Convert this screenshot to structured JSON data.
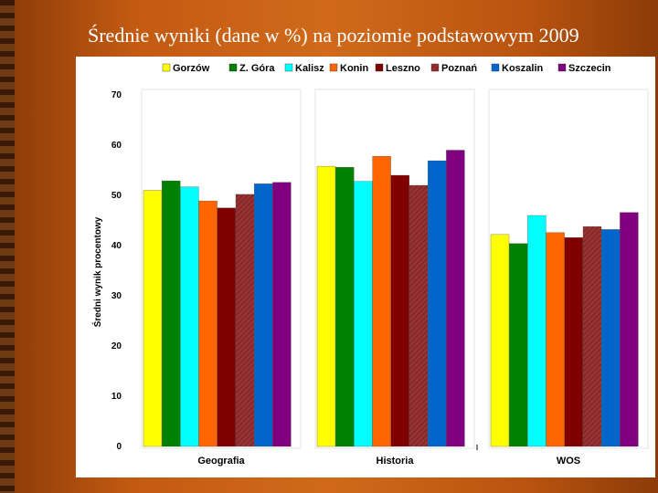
{
  "slide": {
    "title": "Średnie wyniki (dane w %) na poziomie podstawowym 2009"
  },
  "chart_data": {
    "type": "bar",
    "title": "Średnie wyniki (dane w %) na poziomie podstawowym 2009",
    "xlabel": "",
    "ylabel": "Średni wynik procentowy",
    "ylim": [
      0,
      70
    ],
    "yticks": [
      0,
      10,
      20,
      30,
      40,
      50,
      60,
      70
    ],
    "grid": false,
    "legend_position": "top",
    "categories": [
      "Geografia",
      "Historia",
      "WOS"
    ],
    "series": [
      {
        "name": "Gorzów",
        "color": "#ffff00",
        "values": [
          51.0,
          55.8,
          42.2
        ]
      },
      {
        "name": "Z. Góra",
        "color": "#008000",
        "values": [
          52.9,
          55.6,
          40.4
        ]
      },
      {
        "name": "Kalisz",
        "color": "#00ffff",
        "values": [
          51.7,
          52.8,
          46.0
        ]
      },
      {
        "name": "Konin",
        "color": "#ff6600",
        "values": [
          48.9,
          57.8,
          42.6
        ]
      },
      {
        "name": "Leszno",
        "color": "#800000",
        "values": [
          47.5,
          54.0,
          41.6
        ]
      },
      {
        "name": "Poznań",
        "color": "#993333",
        "values": [
          50.2,
          52.0,
          43.8
        ]
      },
      {
        "name": "Koszalin",
        "color": "#0066cc",
        "values": [
          52.3,
          56.9,
          43.2
        ]
      },
      {
        "name": "Szczecin",
        "color": "#800080",
        "values": [
          52.6,
          59.0,
          46.6
        ]
      }
    ]
  }
}
